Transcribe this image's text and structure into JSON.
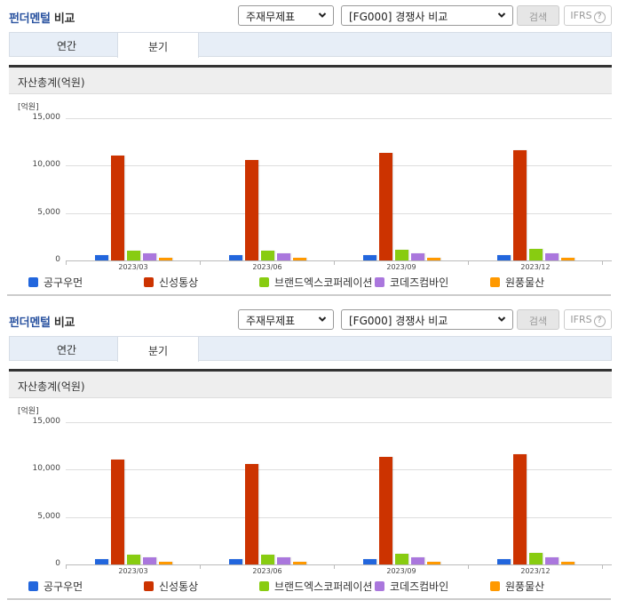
{
  "panels": [
    {
      "title_part1": "펀더멘털",
      "title_part2": "비교",
      "statement_select": "주재무제표",
      "compare_select": "[FG000] 경쟁사 비교",
      "search_button": "검색",
      "ifrs_button": "IFRS",
      "help_icon": "?",
      "tabs": [
        {
          "label": "연간",
          "active": false
        },
        {
          "label": "분기",
          "active": true
        }
      ],
      "section_title": "자산총계(억원)"
    },
    {
      "title_part1": "펀더멘털",
      "title_part2": "비교",
      "statement_select": "주재무제표",
      "compare_select": "[FG000] 경쟁사 비교",
      "search_button": "검색",
      "ifrs_button": "IFRS",
      "help_icon": "?",
      "tabs": [
        {
          "label": "연간",
          "active": false
        },
        {
          "label": "분기",
          "active": true
        }
      ],
      "section_title": "자산총계(억원)"
    }
  ],
  "chart_data": [
    {
      "type": "bar",
      "title": "자산총계(억원)",
      "unit_label": "[억원]",
      "ylabel": "억원",
      "ylim": [
        0,
        15000
      ],
      "yticks": [
        "15,000",
        "10,000",
        "5,000",
        "0"
      ],
      "grid": true,
      "legend_position": "bottom",
      "categories": [
        "2023/03",
        "2023/06",
        "2023/09",
        "2023/12"
      ],
      "series": [
        {
          "name": "공구우먼",
          "color": "#2266dd",
          "values": [
            600,
            600,
            600,
            600
          ]
        },
        {
          "name": "신성통상",
          "color": "#cc3300",
          "values": [
            11030,
            10560,
            11310,
            11590
          ]
        },
        {
          "name": "브랜드엑스코퍼레이션",
          "color": "#88cc11",
          "values": [
            1050,
            1050,
            1150,
            1250
          ]
        },
        {
          "name": "코데즈컴바인",
          "color": "#aa77dd",
          "values": [
            780,
            780,
            780,
            780
          ]
        },
        {
          "name": "원풍물산",
          "color": "#ff9900",
          "values": [
            320,
            320,
            320,
            320
          ]
        }
      ]
    },
    {
      "type": "bar",
      "title": "자산총계(억원)",
      "unit_label": "[억원]",
      "ylabel": "억원",
      "ylim": [
        0,
        15000
      ],
      "yticks": [
        "15,000",
        "10,000",
        "5,000",
        "0"
      ],
      "grid": true,
      "legend_position": "bottom",
      "categories": [
        "2023/03",
        "2023/06",
        "2023/09",
        "2023/12"
      ],
      "series": [
        {
          "name": "공구우먼",
          "color": "#2266dd",
          "values": [
            600,
            600,
            600,
            600
          ]
        },
        {
          "name": "신성통상",
          "color": "#cc3300",
          "values": [
            11030,
            10560,
            11310,
            11590
          ]
        },
        {
          "name": "브랜드엑스코퍼레이션",
          "color": "#88cc11",
          "values": [
            1050,
            1050,
            1150,
            1250
          ]
        },
        {
          "name": "코데즈컴바인",
          "color": "#aa77dd",
          "values": [
            780,
            780,
            780,
            780
          ]
        },
        {
          "name": "원풍물산",
          "color": "#ff9900",
          "values": [
            320,
            320,
            320,
            320
          ]
        }
      ]
    }
  ]
}
